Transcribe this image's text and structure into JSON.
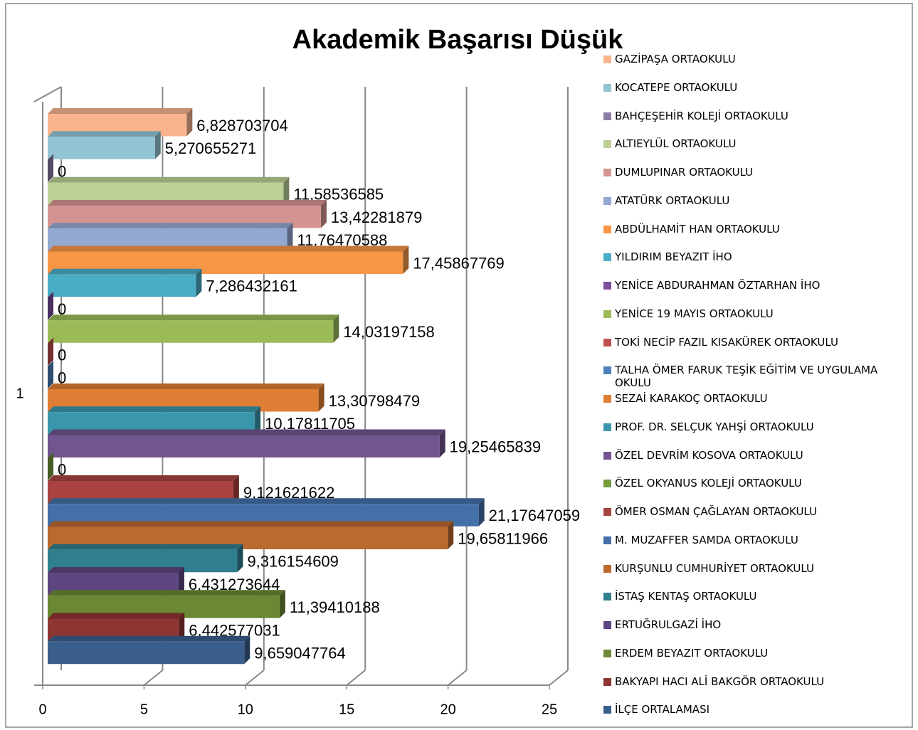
{
  "chart_data": {
    "type": "bar3d",
    "title": "Akademik Başarısı Düşük",
    "categories": [
      "1"
    ],
    "xlim": [
      0,
      25
    ],
    "xticks": [
      0,
      5,
      10,
      15,
      20,
      25
    ],
    "grid": true,
    "legend": "right",
    "series": [
      {
        "name": "GAZİPAŞA ORTAOKULU",
        "color": "#f9b48e",
        "values": [
          6.828703704
        ],
        "value_labels": [
          "6,828703704"
        ]
      },
      {
        "name": "KOCATEPE ORTAOKULU",
        "color": "#93c4d6",
        "values": [
          5.270655271
        ],
        "value_labels": [
          "5,270655271"
        ]
      },
      {
        "name": "BAHÇEŞEHİR KOLEJİ ORTAOKULU",
        "color": "#8b7ea4",
        "values": [
          0
        ]
      },
      {
        "name": "ALTIEYLÜL ORTAOKULU",
        "color": "#bcd096",
        "values": [
          11.58536585
        ],
        "value_labels": [
          "11,58536585"
        ]
      },
      {
        "name": "DUMLUPINAR ORTAOKULU",
        "color": "#d49592",
        "values": [
          13.42281879
        ],
        "value_labels": [
          "13,42281879"
        ]
      },
      {
        "name": "ATATÜRK ORTAOKULU",
        "color": "#94a9d2",
        "values": [
          11.76470588
        ],
        "value_labels": [
          "11,76470588"
        ]
      },
      {
        "name": "ABDÜLHAMİT HAN ORTAOKULU",
        "color": "#f79646",
        "values": [
          17.45867769
        ],
        "value_labels": [
          "17,45867769"
        ]
      },
      {
        "name": "YILDIRIM BEYAZIT İHO",
        "color": "#4bacc6",
        "values": [
          7.286432161
        ],
        "value_labels": [
          "7,286432161"
        ]
      },
      {
        "name": "YENİCE ABDURAHMAN ÖZTARHAN İHO",
        "color": "#7a4f9b",
        "values": [
          0
        ]
      },
      {
        "name": "YENİCE 19 MAYIS ORTAOKULU",
        "color": "#9bbb59",
        "values": [
          14.03197158
        ],
        "value_labels": [
          "14,03197158"
        ]
      },
      {
        "name": "TOKİ NECİP FAZIL KISAKÜREK ORTAOKULU",
        "color": "#c0504d",
        "values": [
          0
        ]
      },
      {
        "name": "TALHA ÖMER FARUK TEŞİK EĞİTİM VE UYGULAMA OKULU",
        "color": "#4f81bd",
        "values": [
          0
        ]
      },
      {
        "name": "SEZAİ KARAKOÇ ORTAOKULU",
        "color": "#e07e35",
        "values": [
          13.30798479
        ],
        "value_labels": [
          "13,30798479"
        ]
      },
      {
        "name": "PROF. DR. SELÇUK YAHŞİ ORTAOKULU",
        "color": "#3a96aa",
        "values": [
          10.17811705
        ],
        "value_labels": [
          "10,17811705"
        ]
      },
      {
        "name": "ÖZEL DEVRİM KOSOVA ORTAOKULU",
        "color": "#71558f",
        "values": [
          19.25465839
        ],
        "value_labels": [
          "19,25465839"
        ]
      },
      {
        "name": "ÖZEL OKYANUS KOLEJİ ORTAOKULU",
        "color": "#779b3c",
        "values": [
          0
        ]
      },
      {
        "name": "ÖMER OSMAN ÇAĞLAYAN ORTAOKULU",
        "color": "#a84341",
        "values": [
          9.121621622
        ],
        "value_labels": [
          "9,121621622"
        ]
      },
      {
        "name": "M. MUZAFFER SAMDA ORTAOKULU",
        "color": "#4370a6",
        "values": [
          21.17647059
        ],
        "value_labels": [
          "21,17647059"
        ]
      },
      {
        "name": "KURŞUNLU CUMHURİYET ORTAOKULU",
        "color": "#ba6a2f",
        "values": [
          19.65811966
        ],
        "value_labels": [
          "19,65811966"
        ]
      },
      {
        "name": "İSTAŞ KENTAŞ ORTAOKULU",
        "color": "#2f7f8e",
        "values": [
          9.316154609
        ],
        "value_labels": [
          "9,316154609"
        ]
      },
      {
        "name": "ERTUĞRULGAZİ İHO",
        "color": "#5e4680",
        "values": [
          6.431273644
        ],
        "value_labels": [
          "6,431273644"
        ]
      },
      {
        "name": "ERDEM BEYAZIT ORTAOKULU",
        "color": "#6b8834",
        "values": [
          11.39410188
        ],
        "value_labels": [
          "11,39410188"
        ]
      },
      {
        "name": "BAKYAPI HACI ALİ BAKGÖR ORTAOKULU",
        "color": "#8e3533",
        "values": [
          6.442577031
        ],
        "value_labels": [
          "6,442577031"
        ]
      },
      {
        "name": "İLÇE ORTALAMASI",
        "color": "#3a5e8c",
        "values": [
          9.659047764
        ],
        "value_labels": [
          "9,659047764"
        ]
      }
    ]
  }
}
